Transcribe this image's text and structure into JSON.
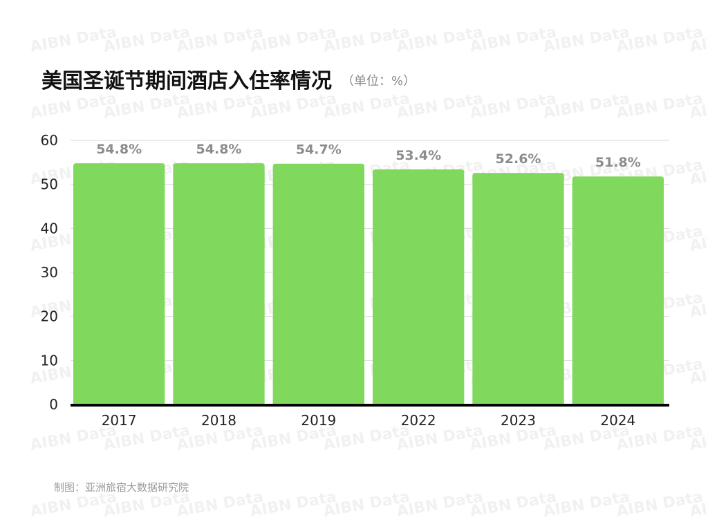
{
  "chart_data": {
    "type": "bar",
    "title": "美国圣诞节期间酒店入住率情况",
    "subtitle": "（单位：%）",
    "categories": [
      "2017",
      "2018",
      "2019",
      "2022",
      "2023",
      "2024"
    ],
    "values": [
      54.8,
      54.8,
      54.7,
      53.4,
      52.6,
      51.8
    ],
    "data_labels": [
      "54.8%",
      "54.8%",
      "54.7%",
      "53.4%",
      "52.6%",
      "51.8%"
    ],
    "ylim": [
      0,
      60
    ],
    "yticks": [
      0,
      10,
      20,
      30,
      40,
      50,
      60
    ],
    "grid": true,
    "bar_color": "#80d95c",
    "label_color": "#8c8c8c",
    "grid_color": "#d9d9d9",
    "axis_color": "#000000"
  },
  "source": "制图：亚洲旅宿大数据研究院",
  "watermark": "AIBN Data"
}
